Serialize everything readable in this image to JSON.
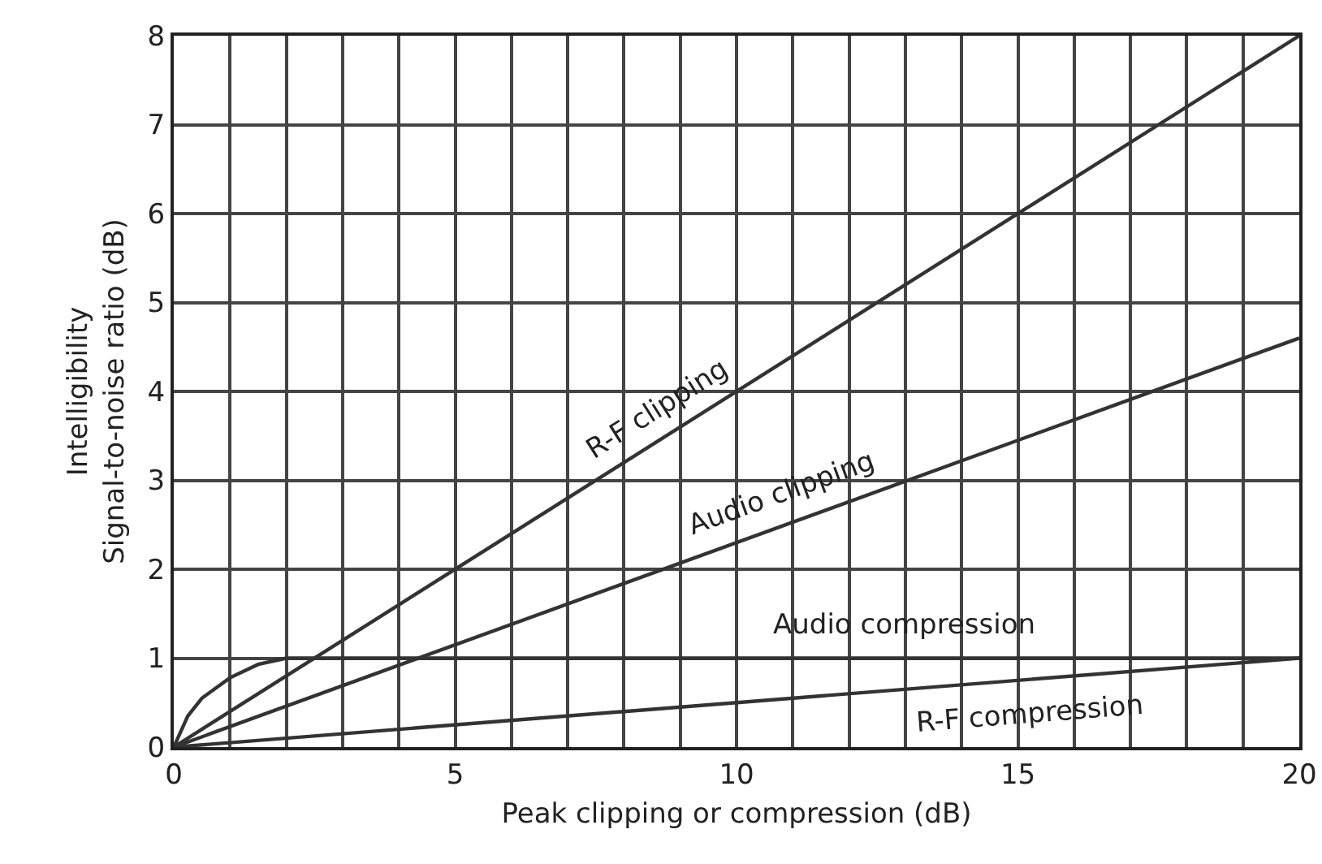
{
  "chart_data": {
    "type": "line",
    "xlabel": "Peak clipping or compression (dB)",
    "ylabel": "Intelligibility\nSignal-to-noise ratio (dB)",
    "xlim": [
      0,
      20
    ],
    "xticks": [
      0,
      {
        "value": 1,
        "label": null
      },
      {
        "value": 2,
        "label": null
      },
      {
        "value": 3,
        "label": null
      },
      {
        "value": 4,
        "label": null
      },
      5,
      {
        "value": 6,
        "label": null
      },
      {
        "value": 7,
        "label": null
      },
      {
        "value": 8,
        "label": null
      },
      {
        "value": 9,
        "label": null
      },
      10,
      {
        "value": 11,
        "label": null
      },
      {
        "value": 12,
        "label": null
      },
      {
        "value": 13,
        "label": null
      },
      {
        "value": 14,
        "label": null
      },
      15,
      {
        "value": 16,
        "label": null
      },
      {
        "value": 17,
        "label": null
      },
      {
        "value": 18,
        "label": null
      },
      {
        "value": 19,
        "label": null
      },
      20
    ],
    "ylim": [
      0,
      8
    ],
    "yticks": [
      0,
      1,
      2,
      3,
      4,
      5,
      6,
      7,
      8
    ],
    "grid": true,
    "line_style": "solid",
    "marker": "none",
    "series": [
      {
        "name": "R-F clipping",
        "color": "#333333",
        "x": [
          0,
          20
        ],
        "values": [
          0,
          8
        ]
      },
      {
        "name": "Audio clipping",
        "color": "#333333",
        "x": [
          0,
          20
        ],
        "values": [
          0,
          4.6
        ]
      },
      {
        "name": "Audio compression",
        "color": "#333333",
        "x": [
          0,
          0.25,
          0.5,
          1,
          1.5,
          2,
          20
        ],
        "values": [
          0,
          0.35,
          0.55,
          0.78,
          0.93,
          1,
          1
        ]
      },
      {
        "name": "R-F compression",
        "color": "#333333",
        "x": [
          0,
          20
        ],
        "values": [
          0,
          1
        ]
      }
    ]
  }
}
